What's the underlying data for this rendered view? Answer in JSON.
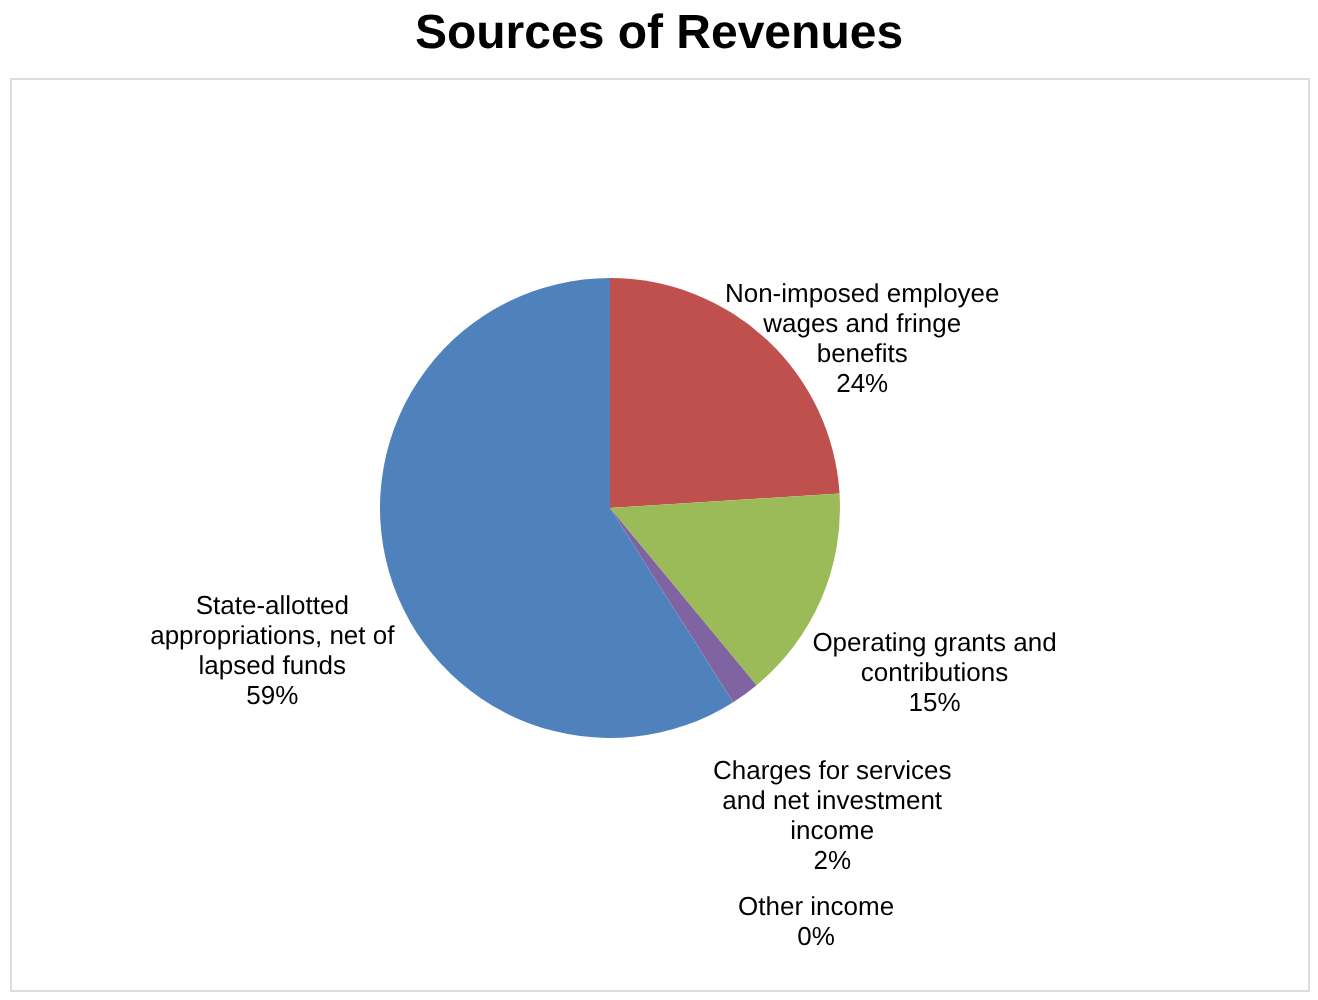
{
  "chart_data": {
    "type": "pie",
    "title": "Sources of Revenues",
    "categories": [
      "Non-imposed employee wages and fringe benefits",
      "Operating grants and contributions",
      "Charges for services and net investment income",
      "Other income",
      "State-allotted appropriations, net of lapsed funds"
    ],
    "values": [
      24,
      15,
      2,
      0,
      59
    ],
    "value_labels": [
      "24%",
      "15%",
      "2%",
      "0%",
      "59%"
    ],
    "colors": [
      "#c0504d",
      "#9bbb59",
      "#8064a2",
      "#4bacc6",
      "#4f81bd"
    ],
    "legend": false
  }
}
